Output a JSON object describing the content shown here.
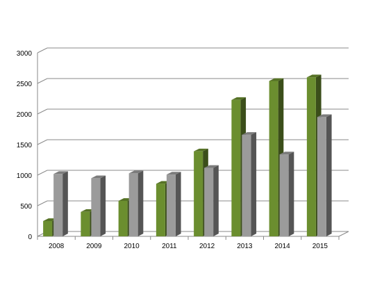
{
  "chart_data": {
    "type": "bar",
    "style": "3d-clustered-column",
    "categories": [
      "2008",
      "2009",
      "2010",
      "2011",
      "2012",
      "2013",
      "2014",
      "2015"
    ],
    "series": [
      {
        "color": "#6b8e2f",
        "values": [
          250,
          400,
          580,
          860,
          1390,
          2230,
          2540,
          2600
        ]
      },
      {
        "color": "#9b9b9b",
        "values": [
          1020,
          950,
          1030,
          1010,
          1120,
          1660,
          1340,
          1950
        ]
      }
    ],
    "yticks": [
      "0",
      "500",
      "1000",
      "1500",
      "2000",
      "2500",
      "3000"
    ],
    "ylim": [
      0,
      3000
    ],
    "grid": true,
    "legend": "none"
  }
}
